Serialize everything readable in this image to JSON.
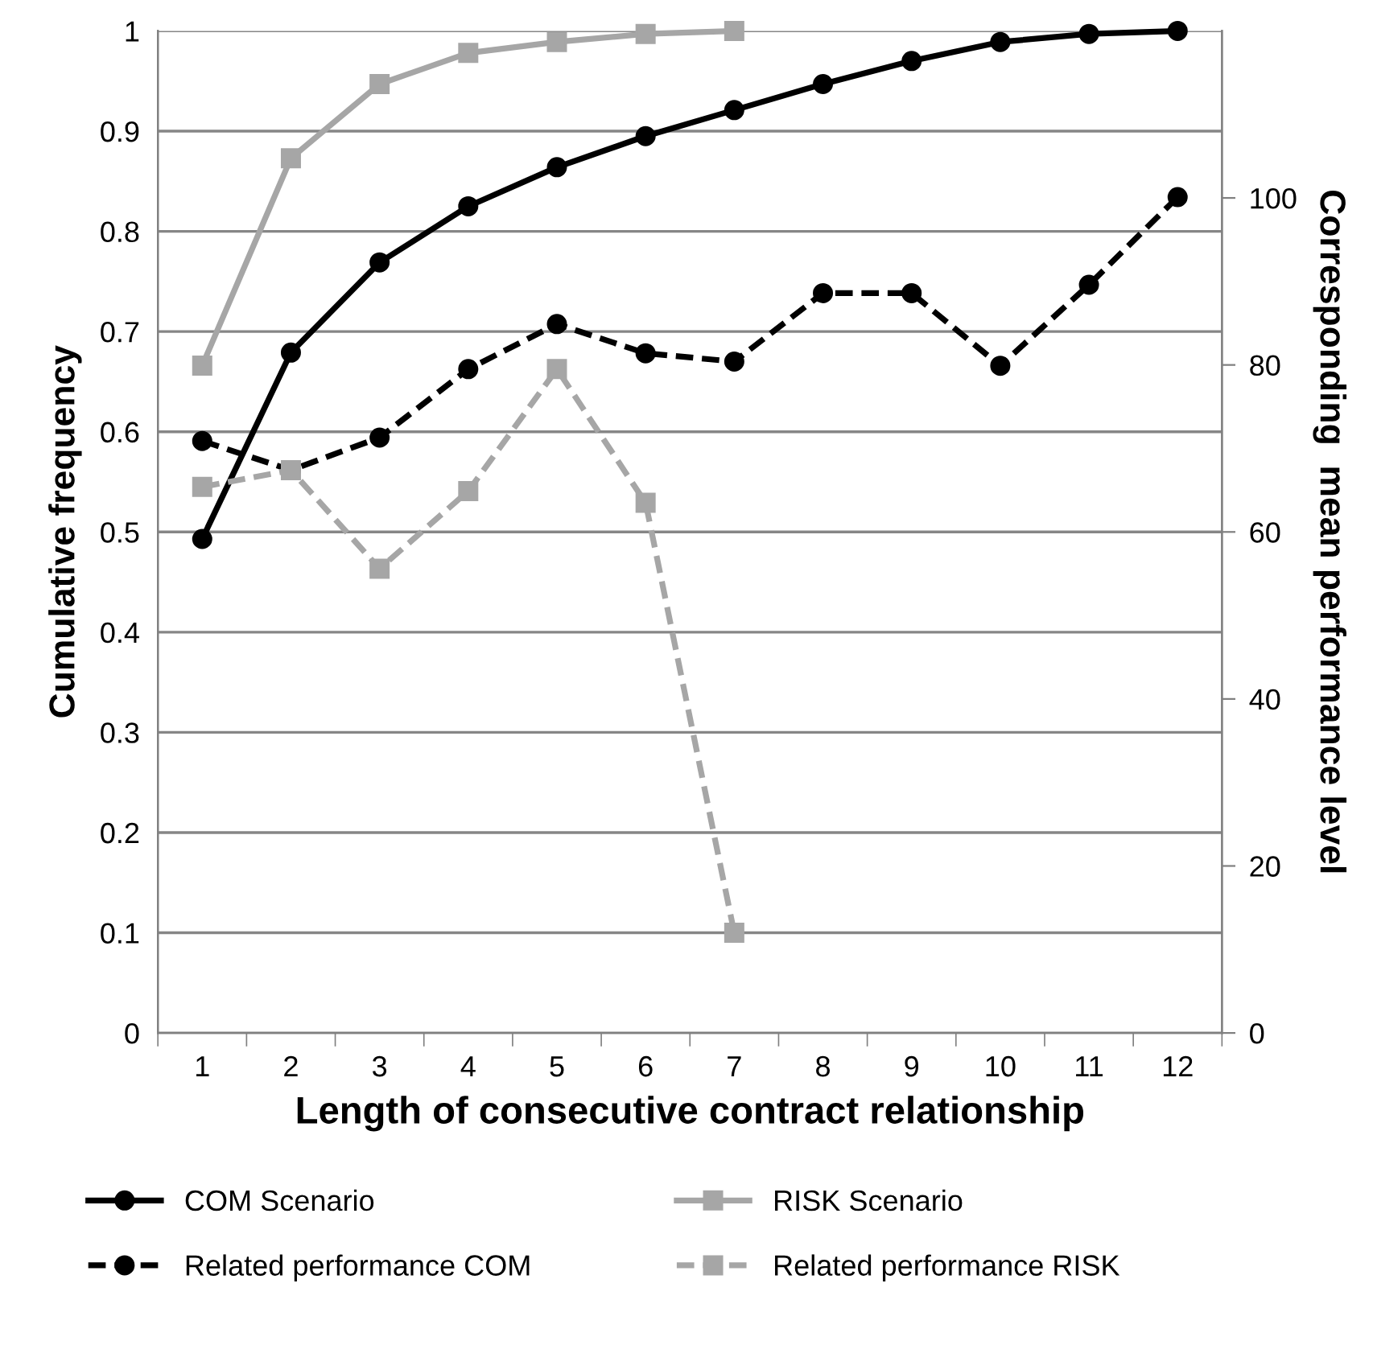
{
  "chart_data": {
    "type": "line",
    "xlabel": "Length of consecutive contract relationship",
    "ylabel": "Cumulative frequency",
    "y2label": "Corresponding  mean performance level",
    "categories": [
      "1",
      "2",
      "3",
      "4",
      "5",
      "6",
      "7",
      "8",
      "9",
      "10",
      "11",
      "12"
    ],
    "ylim": [
      0,
      1
    ],
    "yticks": [
      0,
      0.1,
      0.2,
      0.3,
      0.4,
      0.5,
      0.6,
      0.7,
      0.8,
      0.9,
      1
    ],
    "y2lim": [
      0,
      120
    ],
    "y2ticks": [
      0,
      20,
      40,
      60,
      80,
      100
    ],
    "grid": "y",
    "legend": "bottom",
    "series": [
      {
        "name": "COM Scenario",
        "color": "#000000",
        "marker": "circle",
        "line_style": "solid",
        "values": [
          0.493,
          0.679,
          0.769,
          0.825,
          0.864,
          0.895,
          0.921,
          0.947,
          0.97,
          0.989,
          0.997,
          1.0
        ]
      },
      {
        "name": "RISK Scenario",
        "color": "#a6a6a6",
        "marker": "square",
        "line_style": "solid",
        "values": [
          0.666,
          0.873,
          0.947,
          0.978,
          0.989,
          0.997,
          1.0,
          null,
          null,
          null,
          null,
          null
        ]
      },
      {
        "name": "Related performance COM",
        "color": "#000000",
        "marker": "circle",
        "line_style": "dashed",
        "axis": "y2",
        "values": [
          70.9,
          67.4,
          71.3,
          79.5,
          84.9,
          81.4,
          80.4,
          88.6,
          88.6,
          79.9,
          89.6,
          100.1
        ]
      },
      {
        "name": "Related performance RISK",
        "color": "#a6a6a6",
        "marker": "square",
        "line_style": "dashed",
        "axis": "y2",
        "values": [
          65.4,
          67.4,
          55.6,
          64.9,
          79.5,
          63.5,
          12.0,
          null,
          null,
          null,
          null,
          null
        ]
      }
    ]
  }
}
